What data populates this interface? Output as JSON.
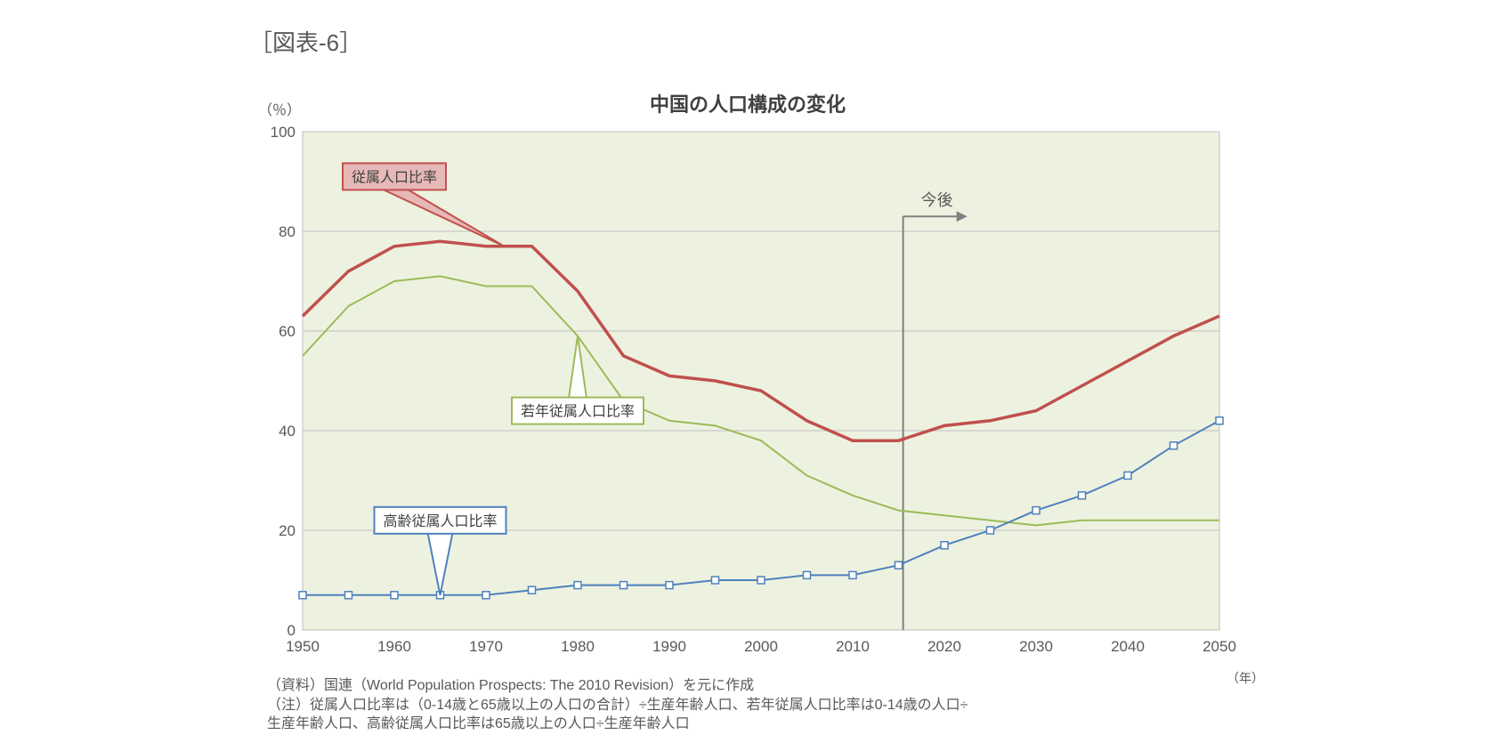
{
  "figure_label": "［図表-6］",
  "chart": {
    "type": "line",
    "title": "中国の人口構成の変化",
    "y_axis_unit": "（％）",
    "x_axis_unit": "（年）",
    "plot_background": "#edf2e0",
    "page_background": "#ffffff",
    "gridline_color": "#bfbfbf",
    "axis_color": "#808080",
    "tick_label_color": "#595959",
    "tick_label_fontsize": 17,
    "title_fontsize": 22,
    "title_color": "#404040",
    "xlim": [
      1950,
      2050
    ],
    "ylim": [
      0,
      100
    ],
    "ytick_step": 20,
    "xtick_step": 10,
    "years": [
      1950,
      1955,
      1960,
      1965,
      1970,
      1975,
      1980,
      1985,
      1990,
      1995,
      2000,
      2005,
      2010,
      2015,
      2020,
      2025,
      2030,
      2035,
      2040,
      2045,
      2050
    ],
    "future_marker": {
      "label": "今後",
      "year": 2015.5,
      "color": "#808080",
      "line_width": 2
    },
    "series": [
      {
        "key": "dependent",
        "label": "従属人口比率",
        "color": "#c0504d",
        "line_width": 3.5,
        "markers": false,
        "values": [
          63,
          72,
          77,
          78,
          77,
          77,
          68,
          55,
          51,
          50,
          48,
          42,
          38,
          38,
          41,
          42,
          44,
          49,
          54,
          59,
          63
        ],
        "callout": {
          "label": "従属人口比率",
          "fill": "#e6b8b7",
          "border": "#c0504d",
          "text_color": "#404040",
          "anchor_year": 1972,
          "anchor_value": 77,
          "box_year": 1960,
          "box_value": 91
        }
      },
      {
        "key": "youth",
        "label": "若年従属人口比率",
        "color": "#9bbb59",
        "line_width": 2,
        "markers": false,
        "values": [
          55,
          65,
          70,
          71,
          69,
          69,
          59,
          46,
          42,
          41,
          38,
          31,
          27,
          24,
          23,
          22,
          21,
          22,
          22,
          22,
          22
        ],
        "callout": {
          "label": "若年従属人口比率",
          "fill": "#ffffff",
          "border": "#9bbb59",
          "text_color": "#404040",
          "anchor_year": 1980,
          "anchor_value": 59,
          "box_year": 1980,
          "box_value": 44
        }
      },
      {
        "key": "aged",
        "label": "高齢従属人口比率",
        "color": "#4f81bd",
        "line_width": 2,
        "markers": true,
        "marker_style": "square-open",
        "marker_size": 8,
        "marker_fill": "#ffffff",
        "values": [
          7,
          7,
          7,
          7,
          7,
          8,
          9,
          9,
          9,
          10,
          10,
          11,
          11,
          13,
          17,
          20,
          24,
          27,
          31,
          37,
          42
        ],
        "callout": {
          "label": "高齢従属人口比率",
          "fill": "#ffffff",
          "border": "#4f81bd",
          "text_color": "#404040",
          "anchor_year": 1965,
          "anchor_value": 7,
          "box_year": 1965,
          "box_value": 22
        }
      }
    ]
  },
  "footnote_line1": "（資料）国連（World Population Prospects: The 2010 Revision）を元に作成",
  "footnote_line2": "（注）従属人口比率は（0-14歳と65歳以上の人口の合計）÷生産年齢人口、若年従属人口比率は0-14歳の人口÷",
  "footnote_line3": "生産年齢人口、高齢従属人口比率は65歳以上の人口÷生産年齢人口"
}
